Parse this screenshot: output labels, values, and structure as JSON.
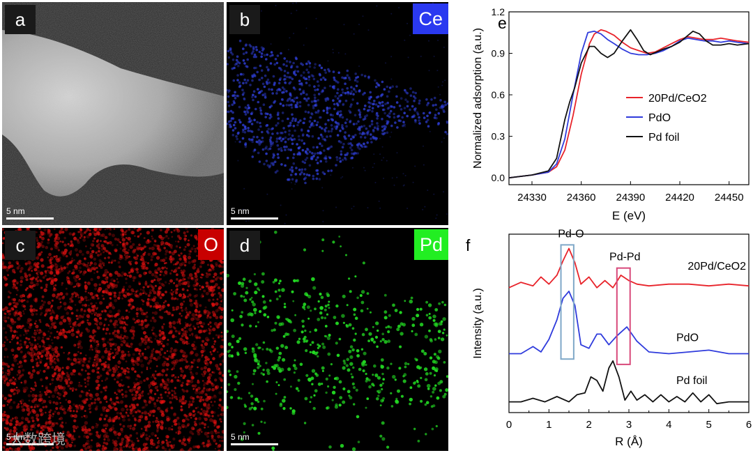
{
  "panels": {
    "a": {
      "label": "a",
      "scale": "5 nm"
    },
    "b": {
      "label": "b",
      "element": "Ce",
      "scale": "5 nm",
      "color": "#2f3fd8",
      "badge_color": "#2a39f0"
    },
    "c": {
      "label": "c",
      "element": "O",
      "scale": "5 nm",
      "color": "#e01010",
      "badge_color": "#c80000"
    },
    "d": {
      "label": "d",
      "element": "Pd",
      "scale": "5 nm",
      "color": "#22d822",
      "badge_color": "#22ee22"
    }
  },
  "watermark": "大数跨境",
  "chart_data": [
    {
      "type": "line",
      "panel": "e",
      "xlabel": "E (eV)",
      "ylabel": "Normalized adsorption (a.u.)",
      "xlim": [
        24316,
        24462
      ],
      "ylim": [
        -0.05,
        1.2
      ],
      "xticks": [
        "24330",
        "24360",
        "24390",
        "24420",
        "24450"
      ],
      "yticks": [
        "0.0",
        "0.3",
        "0.6",
        "0.9",
        "1.2"
      ],
      "legend": [
        "20Pd/CeO2",
        "PdO",
        "Pd foil"
      ],
      "series": [
        {
          "name": "20Pd/CeO2",
          "color": "#e8232a",
          "x": [
            24316,
            24330,
            24340,
            24345,
            24350,
            24355,
            24360,
            24365,
            24368,
            24372,
            24375,
            24380,
            24385,
            24390,
            24395,
            24400,
            24405,
            24410,
            24415,
            24420,
            24425,
            24430,
            24435,
            24440,
            24445,
            24450,
            24455,
            24462
          ],
          "y": [
            0.0,
            0.02,
            0.04,
            0.08,
            0.2,
            0.45,
            0.75,
            0.97,
            1.04,
            1.07,
            1.06,
            1.03,
            0.98,
            0.94,
            0.92,
            0.9,
            0.91,
            0.94,
            0.97,
            1.0,
            1.02,
            1.01,
            1.0,
            1.0,
            1.01,
            1.0,
            0.99,
            0.98
          ]
        },
        {
          "name": "PdO",
          "color": "#2f3bdc",
          "x": [
            24316,
            24330,
            24340,
            24345,
            24350,
            24355,
            24360,
            24364,
            24368,
            24372,
            24376,
            24380,
            24385,
            24390,
            24395,
            24400,
            24405,
            24410,
            24415,
            24420,
            24425,
            24430,
            24435,
            24440,
            24445,
            24450,
            24455,
            24462
          ],
          "y": [
            0.0,
            0.02,
            0.04,
            0.1,
            0.28,
            0.6,
            0.9,
            1.05,
            1.06,
            1.04,
            1.0,
            0.97,
            0.93,
            0.9,
            0.89,
            0.89,
            0.9,
            0.92,
            0.95,
            0.99,
            1.01,
            1.0,
            0.99,
            0.99,
            0.98,
            0.99,
            0.98,
            0.97
          ]
        },
        {
          "name": "Pd foil",
          "color": "#111111",
          "x": [
            24316,
            24330,
            24340,
            24345,
            24350,
            24353,
            24356,
            24360,
            24365,
            24368,
            24372,
            24376,
            24380,
            24385,
            24390,
            24394,
            24398,
            24402,
            24406,
            24410,
            24415,
            24420,
            24425,
            24428,
            24432,
            24436,
            24440,
            24445,
            24450,
            24455,
            24462
          ],
          "y": [
            0.0,
            0.02,
            0.05,
            0.14,
            0.42,
            0.55,
            0.65,
            0.83,
            0.95,
            0.95,
            0.9,
            0.87,
            0.9,
            0.99,
            1.07,
            1.0,
            0.92,
            0.89,
            0.91,
            0.93,
            0.95,
            0.98,
            1.03,
            1.06,
            1.04,
            0.99,
            0.96,
            0.96,
            0.97,
            0.96,
            0.97
          ]
        }
      ]
    },
    {
      "type": "line",
      "panel": "f",
      "xlabel": "R (Å)",
      "ylabel": "Intensity (a.u.)",
      "xlim": [
        0,
        6
      ],
      "ylim": [
        0,
        1
      ],
      "xticks": [
        "0",
        "1",
        "2",
        "3",
        "4",
        "5",
        "6"
      ],
      "annotations": [
        "Pd-O",
        "Pd-Pd"
      ],
      "series": [
        {
          "name": "20Pd/CeO2",
          "color": "#e8232a",
          "x": [
            0,
            0.3,
            0.6,
            0.8,
            1.0,
            1.2,
            1.35,
            1.5,
            1.65,
            1.8,
            2.0,
            2.2,
            2.4,
            2.6,
            2.8,
            3.0,
            3.2,
            3.5,
            4.0,
            4.5,
            5.0,
            5.5,
            6.0
          ],
          "y": [
            0.7,
            0.73,
            0.71,
            0.76,
            0.72,
            0.77,
            0.85,
            0.92,
            0.84,
            0.72,
            0.76,
            0.7,
            0.74,
            0.7,
            0.77,
            0.74,
            0.72,
            0.71,
            0.72,
            0.72,
            0.71,
            0.72,
            0.71
          ]
        },
        {
          "name": "PdO",
          "color": "#2f3bdc",
          "x": [
            0,
            0.3,
            0.6,
            0.8,
            1.0,
            1.2,
            1.35,
            1.5,
            1.65,
            1.8,
            2.0,
            2.2,
            2.3,
            2.5,
            2.7,
            2.95,
            3.2,
            3.5,
            4.0,
            4.5,
            5.0,
            5.5,
            6.0
          ],
          "y": [
            0.33,
            0.33,
            0.37,
            0.34,
            0.41,
            0.52,
            0.64,
            0.68,
            0.6,
            0.38,
            0.36,
            0.44,
            0.44,
            0.38,
            0.43,
            0.48,
            0.4,
            0.34,
            0.33,
            0.34,
            0.35,
            0.33,
            0.33
          ]
        },
        {
          "name": "Pd foil",
          "color": "#111111",
          "x": [
            0,
            0.3,
            0.6,
            0.9,
            1.2,
            1.5,
            1.7,
            1.9,
            2.05,
            2.2,
            2.35,
            2.5,
            2.6,
            2.75,
            2.9,
            3.05,
            3.2,
            3.4,
            3.6,
            3.8,
            4.0,
            4.2,
            4.4,
            4.6,
            4.8,
            5.0,
            5.2,
            5.5,
            6.0
          ],
          "y": [
            0.06,
            0.06,
            0.08,
            0.06,
            0.09,
            0.06,
            0.1,
            0.11,
            0.2,
            0.18,
            0.12,
            0.25,
            0.29,
            0.2,
            0.07,
            0.12,
            0.07,
            0.1,
            0.06,
            0.1,
            0.06,
            0.09,
            0.06,
            0.11,
            0.06,
            0.1,
            0.05,
            0.06,
            0.06
          ]
        }
      ],
      "series_labels": [
        "20Pd/CeO2",
        "PdO",
        "Pd foil"
      ]
    }
  ]
}
